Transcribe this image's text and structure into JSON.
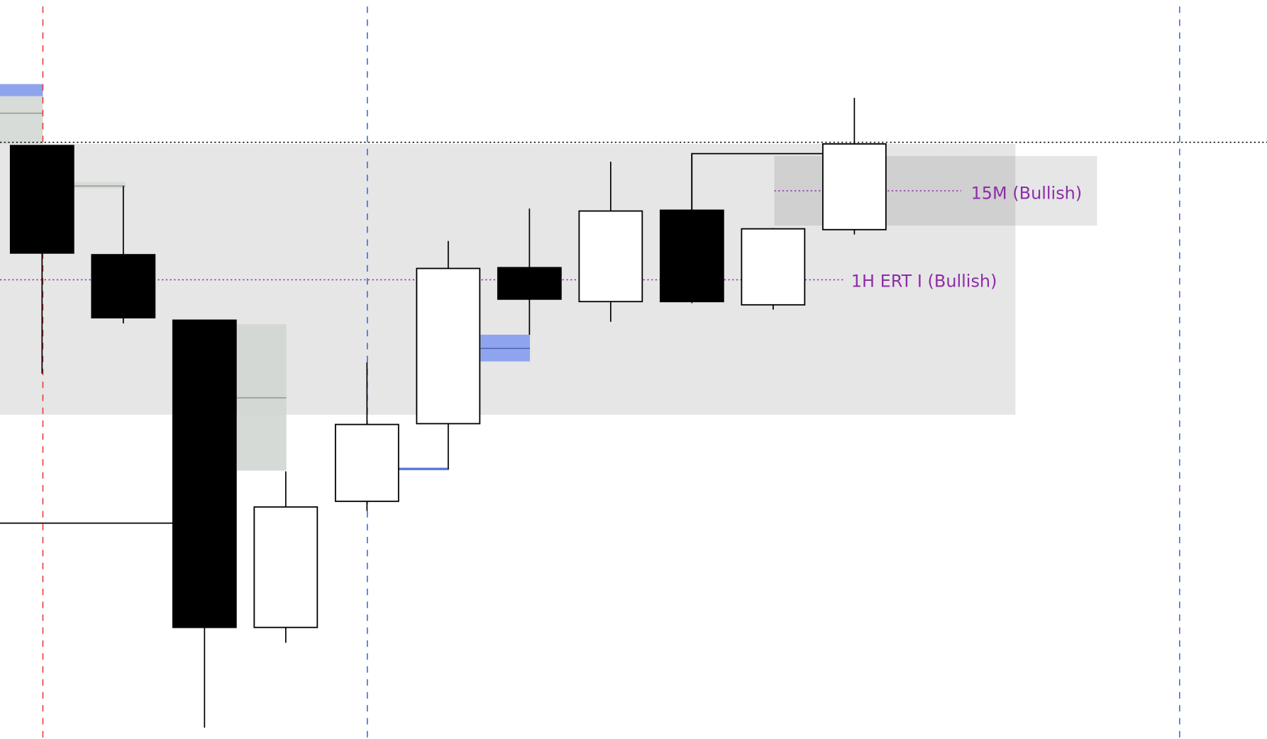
{
  "chart_data": {
    "type": "candlestick",
    "title": "",
    "xlabel": "",
    "ylabel": "",
    "axes_visible": false,
    "grid": false,
    "colors": {
      "bullish_body": "#ffffff",
      "bearish_body": "#000000",
      "outline": "#000000",
      "zone": "#e6e6e6",
      "zone_dark": "#d0d0d0",
      "fvg": "#d8dcd8",
      "blue_zone": "#8fa4ee",
      "purple_label": "#8e2ca8",
      "red_vline": "#e03030",
      "blue_vline": "#2f5ee8"
    },
    "candles": [
      {
        "open": 820,
        "high": 820,
        "low": 538,
        "close": 687
      },
      {
        "open": 685,
        "high": 770,
        "low": 600,
        "close": 607
      },
      {
        "open": 604,
        "high": 604,
        "low": 100,
        "close": 224
      },
      {
        "open": 224,
        "high": 417,
        "low": 205,
        "close": 373
      },
      {
        "open": 380,
        "high": 552,
        "low": 368,
        "close": 475
      },
      {
        "open": 476,
        "high": 702,
        "low": 420,
        "close": 668
      },
      {
        "open": 669,
        "high": 742,
        "low": 586,
        "close": 630
      },
      {
        "open": 627,
        "high": 800,
        "low": 602,
        "close": 739
      },
      {
        "open": 740,
        "high": 810,
        "low": 625,
        "close": 627
      },
      {
        "open": 623,
        "high": 718,
        "low": 617,
        "close": 717
      },
      {
        "open": 716,
        "high": 879,
        "low": 710,
        "close": 822
      }
    ],
    "annotations": [
      {
        "label": "1H ERT I (Bullish)",
        "level": 654
      },
      {
        "label": "15M (Bullish)",
        "level": 764
      }
    ],
    "reference_line": 824,
    "vertical_markers": [
      {
        "candle_index": 0,
        "color": "red"
      },
      {
        "candle_index": 4,
        "color": "blue"
      },
      {
        "candle_index": 14,
        "color": "blue"
      }
    ]
  }
}
